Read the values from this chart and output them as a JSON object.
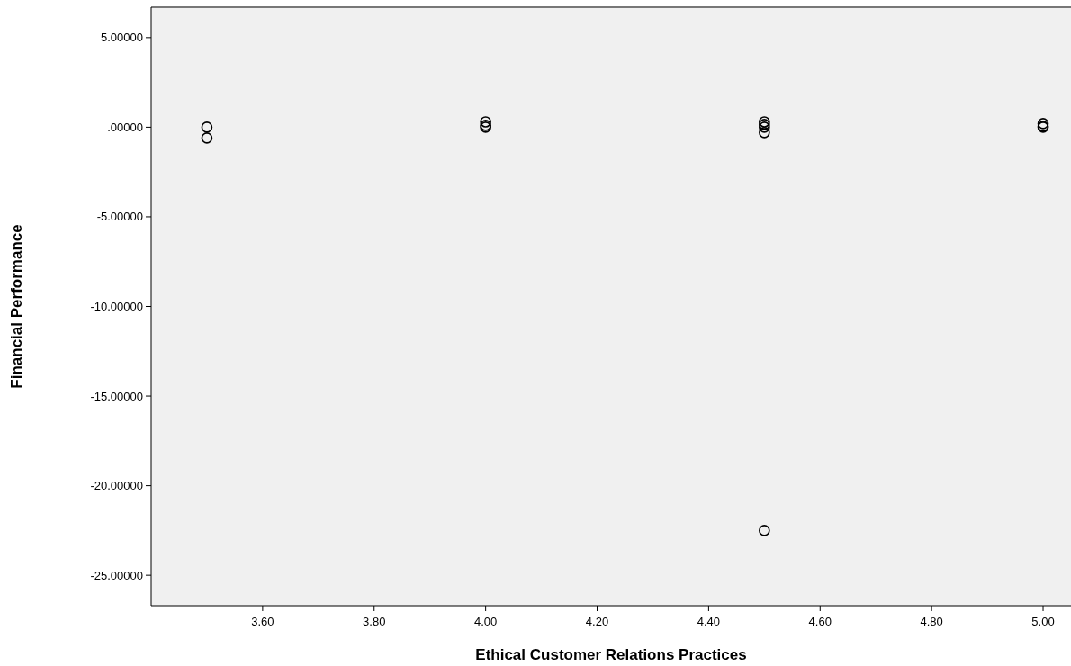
{
  "chart_data": {
    "type": "scatter",
    "xlabel": "Ethical Customer Relations Practices",
    "ylabel": "Financial Performance",
    "x": [
      3.5,
      3.5,
      4.0,
      4.0,
      4.0,
      4.5,
      4.5,
      4.5,
      4.5,
      4.5,
      5.0,
      5.0,
      5.0
    ],
    "values": [
      0.0,
      -0.6,
      0.3,
      0.1,
      0.0,
      0.3,
      0.15,
      0.0,
      -0.3,
      -22.5,
      0.2,
      0.05,
      0.0
    ],
    "color": "#000000",
    "marker": "circle",
    "xlim": [
      3.4,
      5.05
    ],
    "xticks": [
      {
        "value": 3.6,
        "label": "3.60"
      },
      {
        "value": 3.8,
        "label": "3.80"
      },
      {
        "value": 4.0,
        "label": "4.00"
      },
      {
        "value": 4.2,
        "label": "4.20"
      },
      {
        "value": 4.4,
        "label": "4.40"
      },
      {
        "value": 4.6,
        "label": "4.60"
      },
      {
        "value": 4.8,
        "label": "4.80"
      },
      {
        "value": 5.0,
        "label": "5.00"
      }
    ],
    "ylim": [
      -26.7,
      6.7
    ],
    "yticks": [
      {
        "value": 5,
        "label": "5.00000"
      },
      {
        "value": 0,
        "label": ".00000"
      },
      {
        "value": -5,
        "label": "-5.00000"
      },
      {
        "value": -10,
        "label": "-10.00000"
      },
      {
        "value": -15,
        "label": "-15.00000"
      },
      {
        "value": -20,
        "label": "-20.00000"
      },
      {
        "value": -25,
        "label": "-25.00000"
      }
    ],
    "grid": false
  }
}
